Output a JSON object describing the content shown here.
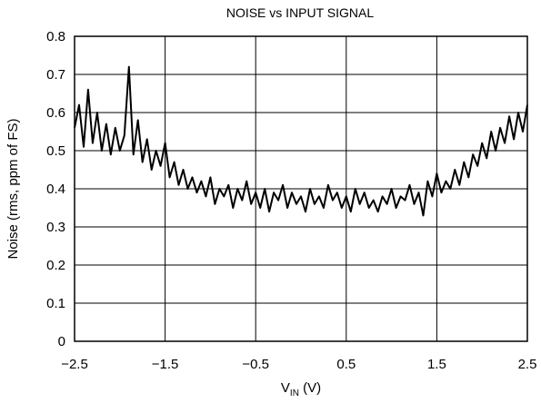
{
  "chart_data": {
    "type": "line",
    "title": "NOISE vs INPUT SIGNAL",
    "xlabel": {
      "main": "V",
      "sub": "IN",
      "unit": " (V)"
    },
    "ylabel": "Noise (rms, ppm of FS)",
    "xlim": [
      -2.5,
      2.5
    ],
    "ylim": [
      0,
      0.8
    ],
    "x_ticks": [
      -2.5,
      -1.5,
      -0.5,
      0.5,
      1.5,
      2.5
    ],
    "x_tick_labels": [
      "−2.5",
      "−1.5",
      "−0.5",
      "0.5",
      "1.5",
      "2.5"
    ],
    "y_ticks": [
      0,
      0.1,
      0.2,
      0.3,
      0.4,
      0.5,
      0.6,
      0.7,
      0.8
    ],
    "y_tick_labels": [
      "0",
      "0.1",
      "0.2",
      "0.3",
      "0.4",
      "0.5",
      "0.6",
      "0.7",
      "0.8"
    ],
    "x_gridlines": [
      -1.5,
      -0.5,
      0.5,
      1.5
    ],
    "y_gridlines": [
      0.1,
      0.2,
      0.3,
      0.4,
      0.5,
      0.6,
      0.7
    ],
    "grid": true,
    "line_color": "#000000",
    "series": [
      {
        "x": [
          -2.5,
          -2.45,
          -2.4,
          -2.35,
          -2.3,
          -2.25,
          -2.2,
          -2.15,
          -2.1,
          -2.05,
          -2.0,
          -1.95,
          -1.9,
          -1.85,
          -1.8,
          -1.75,
          -1.7,
          -1.65,
          -1.6,
          -1.55,
          -1.5,
          -1.45,
          -1.4,
          -1.35,
          -1.3,
          -1.25,
          -1.2,
          -1.15,
          -1.1,
          -1.05,
          -1.0,
          -0.95,
          -0.9,
          -0.85,
          -0.8,
          -0.75,
          -0.7,
          -0.65,
          -0.6,
          -0.55,
          -0.5,
          -0.45,
          -0.4,
          -0.35,
          -0.3,
          -0.25,
          -0.2,
          -0.15,
          -0.1,
          -0.05,
          0.0,
          0.05,
          0.1,
          0.15,
          0.2,
          0.25,
          0.3,
          0.35,
          0.4,
          0.45,
          0.5,
          0.55,
          0.6,
          0.65,
          0.7,
          0.75,
          0.8,
          0.85,
          0.9,
          0.95,
          1.0,
          1.05,
          1.1,
          1.15,
          1.2,
          1.25,
          1.3,
          1.35,
          1.4,
          1.45,
          1.5,
          1.55,
          1.6,
          1.65,
          1.7,
          1.75,
          1.8,
          1.85,
          1.9,
          1.95,
          2.0,
          2.05,
          2.1,
          2.15,
          2.2,
          2.25,
          2.3,
          2.35,
          2.4,
          2.45,
          2.5
        ],
        "y": [
          0.56,
          0.62,
          0.51,
          0.66,
          0.52,
          0.6,
          0.5,
          0.57,
          0.49,
          0.56,
          0.5,
          0.54,
          0.72,
          0.49,
          0.58,
          0.47,
          0.53,
          0.45,
          0.5,
          0.46,
          0.52,
          0.43,
          0.47,
          0.41,
          0.45,
          0.4,
          0.43,
          0.39,
          0.42,
          0.38,
          0.43,
          0.36,
          0.4,
          0.38,
          0.41,
          0.35,
          0.4,
          0.37,
          0.42,
          0.36,
          0.39,
          0.35,
          0.4,
          0.34,
          0.39,
          0.37,
          0.41,
          0.35,
          0.39,
          0.36,
          0.38,
          0.34,
          0.4,
          0.36,
          0.38,
          0.35,
          0.41,
          0.37,
          0.39,
          0.35,
          0.38,
          0.34,
          0.4,
          0.36,
          0.39,
          0.35,
          0.37,
          0.34,
          0.38,
          0.36,
          0.4,
          0.35,
          0.38,
          0.37,
          0.41,
          0.36,
          0.39,
          0.33,
          0.42,
          0.38,
          0.44,
          0.39,
          0.42,
          0.4,
          0.45,
          0.41,
          0.47,
          0.43,
          0.49,
          0.46,
          0.52,
          0.48,
          0.55,
          0.5,
          0.56,
          0.52,
          0.59,
          0.53,
          0.6,
          0.55,
          0.62
        ]
      }
    ]
  }
}
